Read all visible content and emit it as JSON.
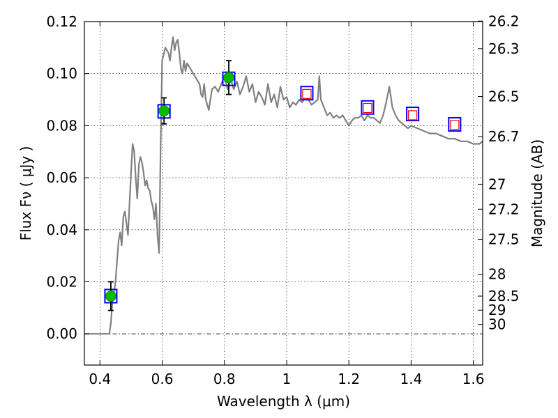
{
  "chart_data": {
    "type": "line",
    "xlabel": "Wavelength  λ (μm)",
    "ylabel": "Flux  Fν  ( μJy )",
    "ylabel_right": "Magnitude (AB)",
    "xlim": [
      0.35,
      1.63
    ],
    "ylim": [
      -0.012,
      0.12
    ],
    "grid": true,
    "x_ticks": [
      0.4,
      0.6,
      0.8,
      1.0,
      1.2,
      1.4,
      1.6
    ],
    "x_tick_labels": [
      "0.4",
      "0.6",
      "0.8",
      "1",
      "1.2",
      "1.4",
      "1.6"
    ],
    "y_ticks": [
      0.0,
      0.02,
      0.04,
      0.06,
      0.08,
      0.1,
      0.12
    ],
    "y_tick_labels": [
      "0.00",
      "0.02",
      "0.04",
      "0.06",
      "0.08",
      "0.10",
      "0.12"
    ],
    "right_ticks": [
      {
        "label": "26.2",
        "flux": 0.1202
      },
      {
        "label": "26.3",
        "flux": 0.1096
      },
      {
        "label": "26.5",
        "flux": 0.0912
      },
      {
        "label": "26.7",
        "flux": 0.0758
      },
      {
        "label": "27",
        "flux": 0.0575
      },
      {
        "label": "27.2",
        "flux": 0.0479
      },
      {
        "label": "27.5",
        "flux": 0.0363
      },
      {
        "label": "28",
        "flux": 0.0229
      },
      {
        "label": "28.5",
        "flux": 0.0145
      },
      {
        "label": "29",
        "flux": 0.0091
      },
      {
        "label": "30",
        "flux": 0.0036
      }
    ],
    "series": [
      {
        "type": "line",
        "color": "#808080",
        "x": [
          0.35,
          0.4,
          0.42,
          0.43,
          0.435,
          0.44,
          0.45,
          0.455,
          0.46,
          0.465,
          0.47,
          0.475,
          0.48,
          0.49,
          0.5,
          0.505,
          0.51,
          0.515,
          0.52,
          0.525,
          0.53,
          0.535,
          0.54,
          0.545,
          0.55,
          0.555,
          0.56,
          0.565,
          0.57,
          0.575,
          0.58,
          0.585,
          0.59,
          0.595,
          0.6,
          0.61,
          0.62,
          0.625,
          0.63,
          0.635,
          0.64,
          0.645,
          0.65,
          0.655,
          0.66,
          0.665,
          0.67,
          0.675,
          0.68,
          0.69,
          0.7,
          0.71,
          0.72,
          0.725,
          0.73,
          0.735,
          0.74,
          0.75,
          0.76,
          0.77,
          0.78,
          0.79,
          0.8,
          0.81,
          0.82,
          0.83,
          0.84,
          0.85,
          0.86,
          0.87,
          0.88,
          0.89,
          0.9,
          0.91,
          0.92,
          0.93,
          0.94,
          0.95,
          0.96,
          0.97,
          0.98,
          0.99,
          1.0,
          1.01,
          1.02,
          1.03,
          1.04,
          1.05,
          1.06,
          1.07,
          1.08,
          1.09,
          1.1,
          1.105,
          1.11,
          1.12,
          1.13,
          1.14,
          1.15,
          1.16,
          1.17,
          1.18,
          1.19,
          1.2,
          1.21,
          1.22,
          1.23,
          1.24,
          1.25,
          1.26,
          1.27,
          1.28,
          1.29,
          1.3,
          1.31,
          1.32,
          1.33,
          1.34,
          1.35,
          1.36,
          1.37,
          1.38,
          1.39,
          1.4,
          1.42,
          1.44,
          1.46,
          1.48,
          1.5,
          1.52,
          1.54,
          1.56,
          1.58,
          1.6,
          1.62,
          1.63
        ],
        "y": [
          0.0,
          0.0,
          0.0,
          0.0,
          0.004,
          0.012,
          0.02,
          0.028,
          0.036,
          0.039,
          0.034,
          0.045,
          0.047,
          0.038,
          0.062,
          0.073,
          0.07,
          0.06,
          0.052,
          0.065,
          0.068,
          0.066,
          0.062,
          0.057,
          0.059,
          0.056,
          0.055,
          0.051,
          0.049,
          0.044,
          0.05,
          0.038,
          0.031,
          0.072,
          0.105,
          0.11,
          0.108,
          0.105,
          0.11,
          0.114,
          0.109,
          0.112,
          0.113,
          0.108,
          0.102,
          0.1,
          0.105,
          0.101,
          0.104,
          0.102,
          0.1,
          0.098,
          0.096,
          0.092,
          0.091,
          0.096,
          0.09,
          0.086,
          0.094,
          0.095,
          0.093,
          0.096,
          0.099,
          0.094,
          0.098,
          0.094,
          0.097,
          0.092,
          0.095,
          0.099,
          0.093,
          0.096,
          0.089,
          0.093,
          0.091,
          0.088,
          0.096,
          0.089,
          0.092,
          0.087,
          0.095,
          0.09,
          0.091,
          0.087,
          0.089,
          0.088,
          0.09,
          0.089,
          0.091,
          0.09,
          0.088,
          0.089,
          0.09,
          0.099,
          0.09,
          0.087,
          0.084,
          0.085,
          0.083,
          0.084,
          0.083,
          0.084,
          0.082,
          0.08,
          0.082,
          0.083,
          0.083,
          0.084,
          0.082,
          0.084,
          0.083,
          0.083,
          0.082,
          0.081,
          0.084,
          0.089,
          0.095,
          0.087,
          0.084,
          0.082,
          0.081,
          0.08,
          0.079,
          0.08,
          0.079,
          0.078,
          0.077,
          0.077,
          0.076,
          0.075,
          0.075,
          0.074,
          0.074,
          0.073,
          0.073,
          0.074
        ]
      },
      {
        "type": "scatter",
        "marker": "square",
        "color": "#0000ff",
        "x": [
          0.435,
          0.606,
          0.814,
          1.065,
          1.26,
          1.405,
          1.54
        ],
        "y": [
          0.0145,
          0.0855,
          0.098,
          0.0925,
          0.087,
          0.0845,
          0.0805
        ]
      },
      {
        "type": "scatter",
        "marker": "circle",
        "color": "#00bb00",
        "x": [
          0.435,
          0.606,
          0.814
        ],
        "y": [
          0.0145,
          0.0857,
          0.0985
        ],
        "yerr": [
          0.0055,
          0.005,
          0.0065
        ]
      },
      {
        "type": "scatter",
        "marker": "square",
        "color": "#ff0000",
        "x": [
          1.065,
          1.26,
          1.405,
          1.54
        ],
        "y": [
          0.0922,
          0.0868,
          0.084,
          0.0803
        ]
      }
    ]
  }
}
